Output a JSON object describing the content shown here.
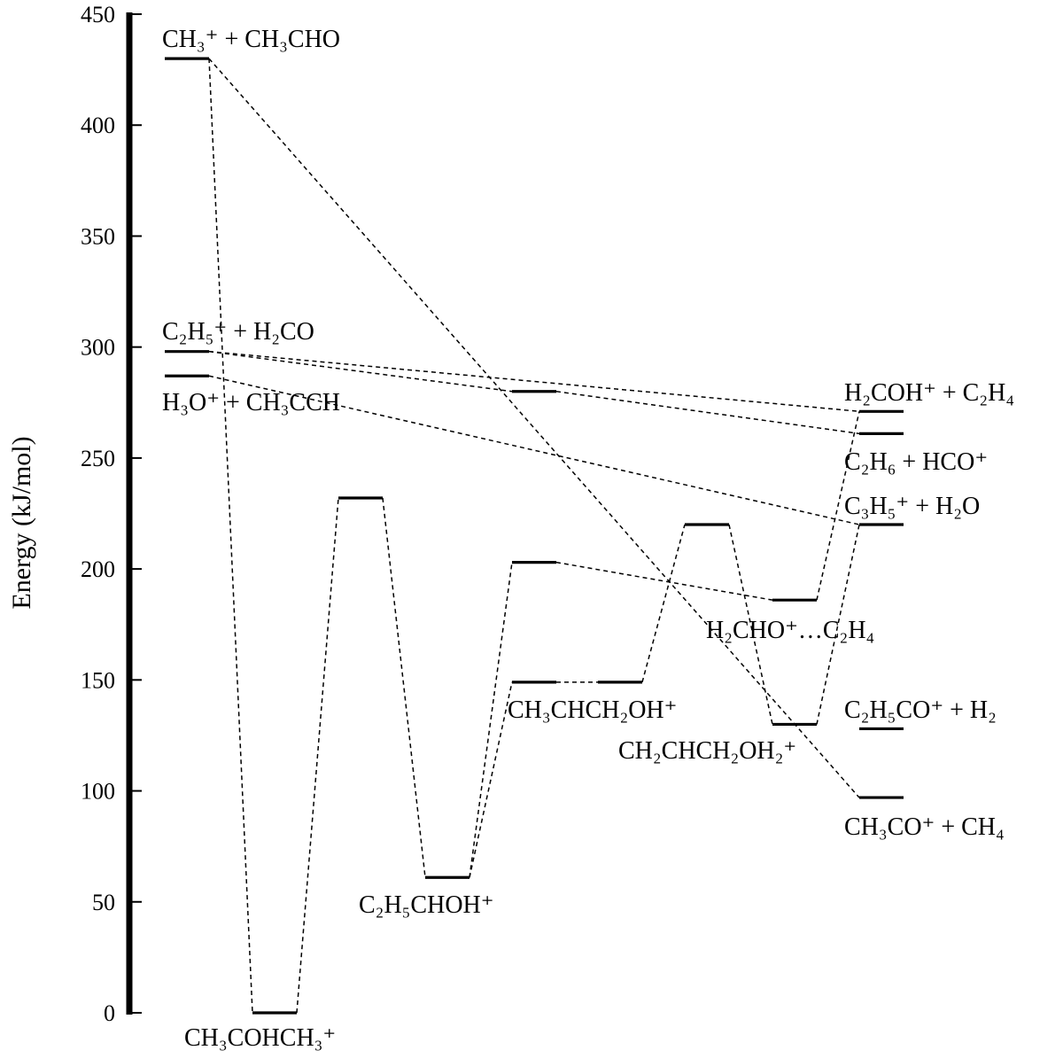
{
  "diagram": {
    "axis": {
      "label": "Energy (kJ/mol)",
      "unit": "kJ/mol",
      "range": [
        0,
        450
      ],
      "ticks": [
        0,
        50,
        100,
        150,
        200,
        250,
        300,
        350,
        400,
        450
      ]
    },
    "levels": [
      {
        "id": "ch3-ch3cho",
        "energy": 430
      },
      {
        "id": "c2h5-h2co",
        "energy": 298
      },
      {
        "id": "h3o-ch3cch",
        "energy": 287
      },
      {
        "id": "ch3cohch3",
        "energy": 0
      },
      {
        "id": "ts1",
        "energy": 232
      },
      {
        "id": "c2h5choh",
        "energy": 61
      },
      {
        "id": "ts-280",
        "energy": 280
      },
      {
        "id": "ts-203",
        "energy": 203
      },
      {
        "id": "ch3chch2oh",
        "energy": 149
      },
      {
        "id": "ts-149b",
        "energy": 149
      },
      {
        "id": "ts-220",
        "energy": 220
      },
      {
        "id": "h2cho-c2h4-complex",
        "energy": 186
      },
      {
        "id": "ch2chch2oh2",
        "energy": 130
      },
      {
        "id": "h2coh-c2h4",
        "energy": 271
      },
      {
        "id": "c2h6-hco",
        "energy": 261
      },
      {
        "id": "c3h5-h2o",
        "energy": 220
      },
      {
        "id": "c2h5co-h2",
        "energy": 128
      },
      {
        "id": "ch3co-ch4",
        "energy": 97
      }
    ],
    "connections": [
      [
        "ch3-ch3cho",
        "ch3cohch3"
      ],
      [
        "ch3-ch3cho",
        "ch3co-ch4"
      ],
      [
        "ch3cohch3",
        "ts1"
      ],
      [
        "ts1",
        "c2h5choh"
      ],
      [
        "c2h5choh",
        "ts-203"
      ],
      [
        "c2h5choh",
        "ch3chch2oh"
      ],
      [
        "ch3chch2oh",
        "ts-149b"
      ],
      [
        "ts-149b",
        "ts-220"
      ],
      [
        "ts-220",
        "ch2chch2oh2"
      ],
      [
        "ts-203",
        "h2cho-c2h4-complex"
      ],
      [
        "h2cho-c2h4-complex",
        "h2coh-c2h4"
      ],
      [
        "ch2chch2oh2",
        "c3h5-h2o"
      ],
      [
        "c2h5-h2co",
        "ts-280"
      ],
      [
        "c2h5-h2co",
        "h2coh-c2h4"
      ],
      [
        "ts-280",
        "c2h6-hco"
      ],
      [
        "h3o-ch3cch",
        "c3h5-h2o"
      ]
    ],
    "labels": {
      "ch3_ch3cho": "CH₃⁺ + CH₃CHO",
      "c2h5_h2co": "C₂H₅⁺ + H₂CO",
      "h3o_ch3cch": "H₃O⁺ + CH₃CCH",
      "ch3cohch3": "CH₃COHCH₃⁺",
      "c2h5choh": "C₂H₅CHOH⁺",
      "ch3chch2oh": "CH₃CHCH₂OH⁺",
      "ch2chch2oh2": "CH₂CHCH₂OH₂⁺",
      "h2cho_c2h4": "H₂CHO⁺…C₂H₄",
      "h2coh_c2h4": "H₂COH⁺ + C₂H₄",
      "c2h6_hco": "C₂H₆ + HCO⁺",
      "c3h5_h2o": "C₃H₅⁺ + H₂O",
      "c2h5co_h2": "C₂H₅CO⁺ + H₂",
      "ch3co_ch4": "CH₃CO⁺ + CH₄"
    }
  }
}
